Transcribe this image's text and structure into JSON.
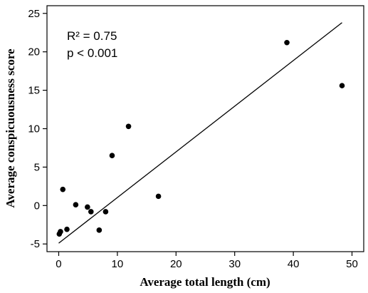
{
  "chart_data": {
    "type": "scatter",
    "xlabel": "Average total length (cm)",
    "ylabel": "Average conspicuousness score",
    "xlim": [
      -2,
      52
    ],
    "ylim": [
      -6,
      26
    ],
    "xticks": [
      0,
      10,
      20,
      30,
      40,
      50
    ],
    "yticks": [
      -5,
      0,
      5,
      10,
      15,
      20,
      25
    ],
    "grid": false,
    "annotations": [
      "R² = 0.75",
      "p < 0.001"
    ],
    "points": [
      {
        "x": 0.1,
        "y": -3.7
      },
      {
        "x": 0.3,
        "y": -3.4
      },
      {
        "x": 0.7,
        "y": 2.1
      },
      {
        "x": 1.4,
        "y": -3.1
      },
      {
        "x": 2.9,
        "y": 0.1
      },
      {
        "x": 4.9,
        "y": -0.2
      },
      {
        "x": 5.5,
        "y": -0.8
      },
      {
        "x": 6.9,
        "y": -3.2
      },
      {
        "x": 8.0,
        "y": -0.8
      },
      {
        "x": 9.1,
        "y": 6.5
      },
      {
        "x": 11.9,
        "y": 10.3
      },
      {
        "x": 17.0,
        "y": 1.2
      },
      {
        "x": 38.9,
        "y": 21.2
      },
      {
        "x": 48.3,
        "y": 15.6
      }
    ],
    "fit_line": {
      "x": [
        0,
        48.3
      ],
      "y": [
        -4.9,
        23.8
      ]
    }
  }
}
